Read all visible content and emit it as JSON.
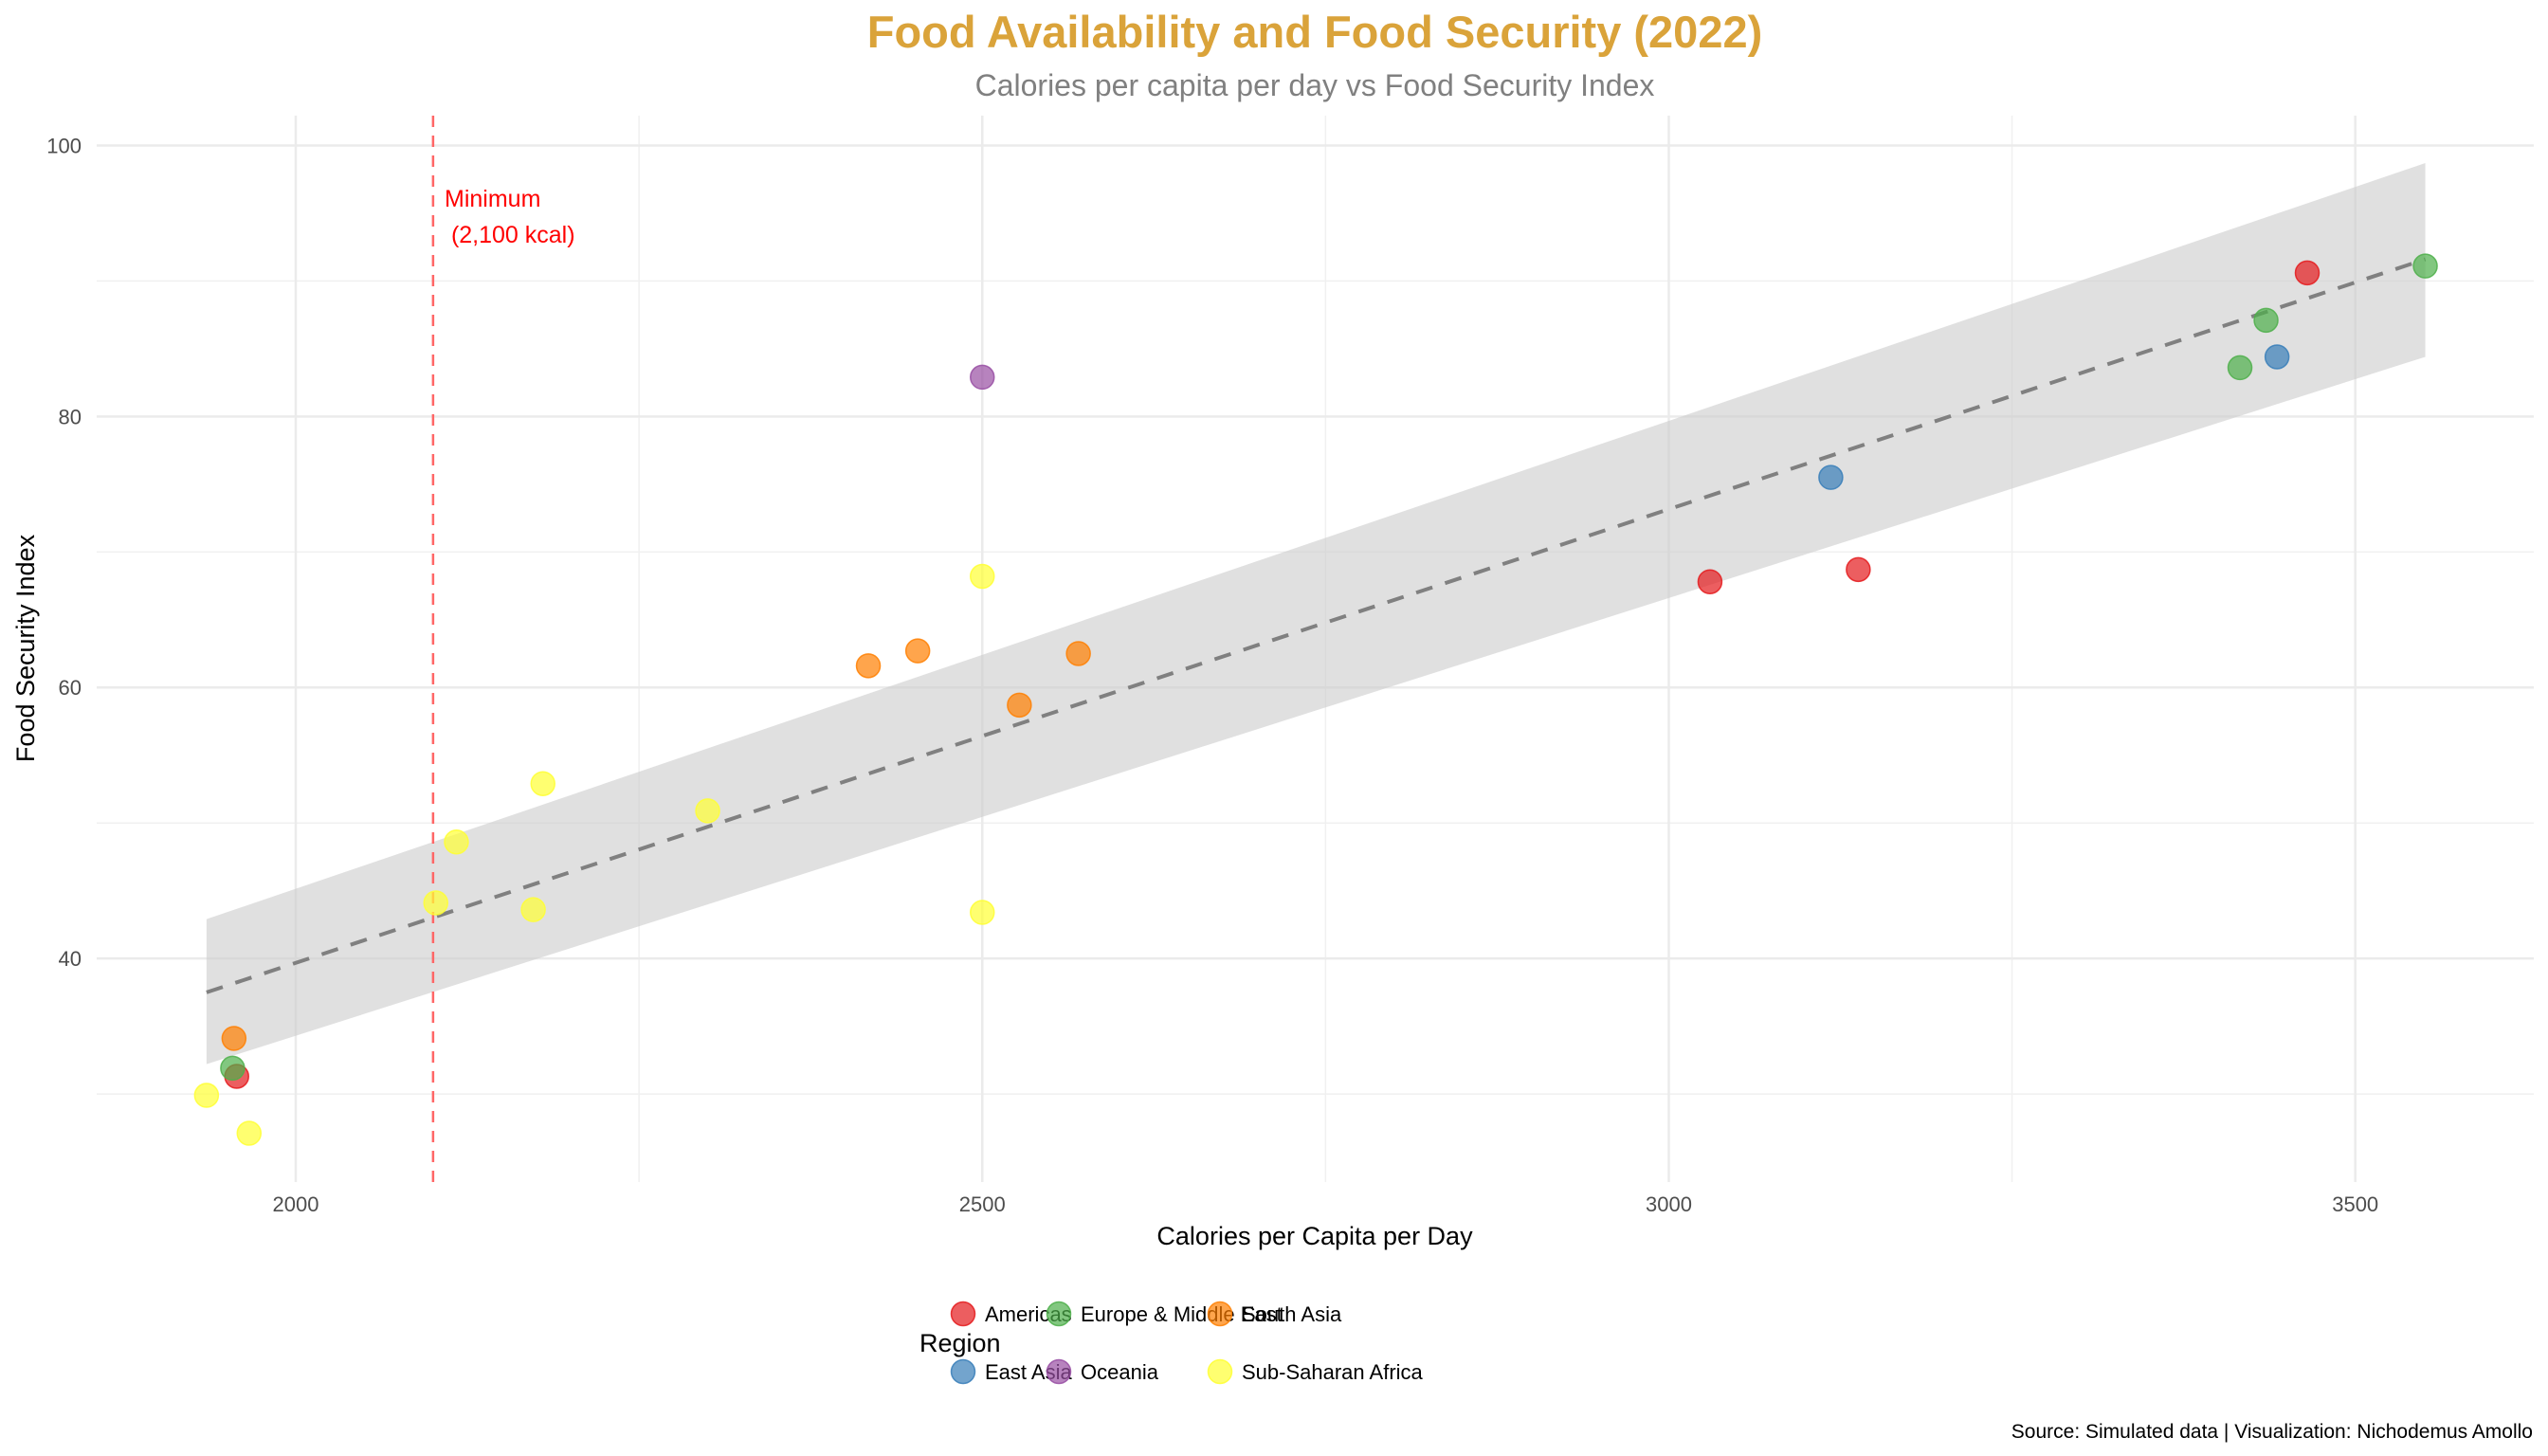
{
  "chart_data": {
    "type": "scatter",
    "title": "Food Availability and Food Security (2022)",
    "subtitle": "Calories per capita per day vs Food Security Index",
    "xlabel": "Calories per Capita per Day",
    "ylabel": "Food Security Index",
    "caption": "Source: Simulated data | Visualization: Nichodemus Amollo",
    "xlim": [
      1855,
      3630
    ],
    "ylim": [
      23.5,
      102.2
    ],
    "x_ticks": [
      2000,
      2500,
      3000,
      3500
    ],
    "x_minor": [
      2250,
      2750,
      3250
    ],
    "y_ticks": [
      40,
      60,
      80,
      100
    ],
    "y_minor": [
      30,
      50,
      70,
      90
    ],
    "grid": true,
    "legend": {
      "title": "Region",
      "position": "bottom",
      "entries": [
        {
          "name": "Americas",
          "color": "#E41A1C"
        },
        {
          "name": "Europe & Middle East",
          "color": "#4DAF4A"
        },
        {
          "name": "South Asia",
          "color": "#FF7F00"
        },
        {
          "name": "East Asia",
          "color": "#377EB8"
        },
        {
          "name": "Oceania",
          "color": "#984EA3"
        },
        {
          "name": "Sub-Saharan Africa",
          "color": "#FFFF33"
        }
      ]
    },
    "series": [
      {
        "name": "Americas",
        "color": "#E41A1C",
        "points": [
          [
            1957,
            31.3
          ],
          [
            3030,
            67.8
          ],
          [
            3138,
            68.7
          ],
          [
            3465,
            90.6
          ]
        ]
      },
      {
        "name": "East Asia",
        "color": "#377EB8",
        "points": [
          [
            3118,
            75.5
          ],
          [
            3443,
            84.4
          ]
        ]
      },
      {
        "name": "Europe & Middle East",
        "color": "#4DAF4A",
        "points": [
          [
            1954,
            31.9
          ],
          [
            3416,
            83.6
          ],
          [
            3435,
            87.1
          ],
          [
            3551,
            91.1
          ]
        ]
      },
      {
        "name": "Oceania",
        "color": "#984EA3",
        "points": [
          [
            2500,
            82.9
          ]
        ]
      },
      {
        "name": "South Asia",
        "color": "#FF7F00",
        "points": [
          [
            1955,
            34.1
          ],
          [
            2417,
            61.6
          ],
          [
            2453,
            62.7
          ],
          [
            2527,
            58.7
          ],
          [
            2570,
            62.5
          ]
        ]
      },
      {
        "name": "Sub-Saharan Africa",
        "color": "#FFFF33",
        "points": [
          [
            1935,
            29.9
          ],
          [
            1966,
            27.1
          ],
          [
            2102,
            44.1
          ],
          [
            2117,
            48.6
          ],
          [
            2173,
            43.6
          ],
          [
            2180,
            52.9
          ],
          [
            2300,
            50.9
          ],
          [
            2500,
            68.2
          ],
          [
            2500,
            43.4
          ]
        ]
      }
    ],
    "trend": {
      "method": "linear",
      "style": "dashed",
      "color": "#808080",
      "x_range": [
        1935,
        3551
      ],
      "y_at_start": 37.5,
      "y_at_end": 91.6,
      "ci_lower": [
        32.2,
        84.4
      ],
      "ci_upper": [
        42.9,
        98.7
      ]
    },
    "reference_line": {
      "x": 2100,
      "color": "#FF6666",
      "style": "dashed",
      "label_line1": "Minimum",
      "label_line2": " (2,100 kcal)"
    }
  }
}
